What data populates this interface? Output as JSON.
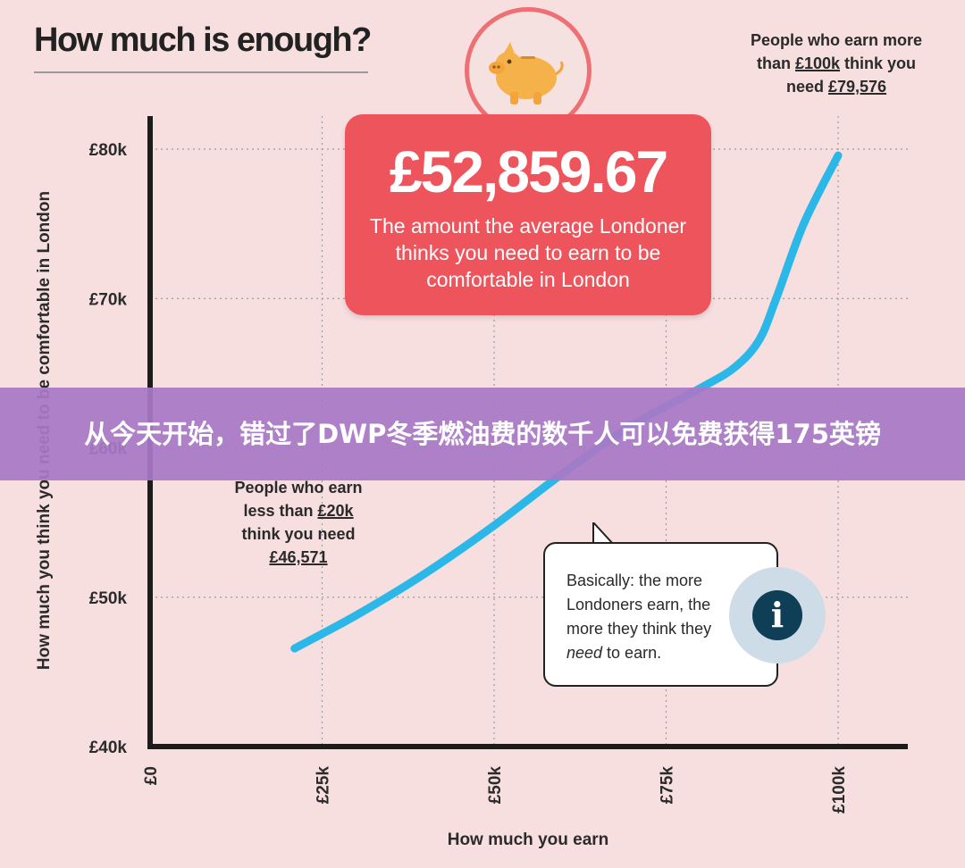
{
  "title": "How much is enough?",
  "headline": {
    "amount": "£52,859.67",
    "caption": "The amount the average Londoner thinks you need to earn to be comfortable in London"
  },
  "annotations": {
    "top": {
      "line1": "People who earn more",
      "line2_prefix": "than ",
      "line2_value": "£100k",
      "line2_suffix": " think you",
      "line3_prefix": "need ",
      "line3_value": "£79,576"
    },
    "middle": {
      "line1": "People who earn",
      "line2_prefix": "less than ",
      "line2_value": "£20k",
      "line3": "think you need",
      "line4_value": "£46,571"
    },
    "info": {
      "line1": "Basically: the more",
      "line2": "Londoners earn, the",
      "line3": "more they think they",
      "line4_em": "need",
      "line4_rest": " to earn.",
      "icon_letter": "i"
    }
  },
  "banner": {
    "text": "从今天开始，错过了DWP冬季燃油费的数千人可以免费获得175英镑"
  },
  "colors": {
    "background": "#f7dfe0",
    "line": "#2bb7e8",
    "headline_box": "#ee545c",
    "banner": "#a878c6",
    "info_icon": "#0f3e57"
  },
  "chart_data": {
    "type": "line",
    "title": "How much is enough?",
    "xlabel": "How much you earn",
    "ylabel": "How much you think you need to be comfortable in London",
    "xlim": [
      0,
      100000
    ],
    "ylim": [
      40000,
      80000
    ],
    "x_ticks": [
      0,
      25000,
      50000,
      75000,
      100000
    ],
    "x_tick_labels": [
      "£0",
      "£25k",
      "£50k",
      "£75k",
      "£100k"
    ],
    "y_ticks": [
      40000,
      50000,
      60000,
      70000,
      80000
    ],
    "y_tick_labels": [
      "£40k",
      "£50k",
      "£60k",
      "£70k",
      "£80k"
    ],
    "grid": true,
    "series": [
      {
        "x": [
          21000,
          30000,
          40000,
          50000,
          60000,
          70000,
          80000,
          85000,
          88500,
          91000,
          95000,
          100000
        ],
        "y": [
          46571,
          48800,
          51600,
          54800,
          58300,
          61500,
          64000,
          65400,
          67200,
          70000,
          75000,
          79576
        ]
      }
    ]
  }
}
